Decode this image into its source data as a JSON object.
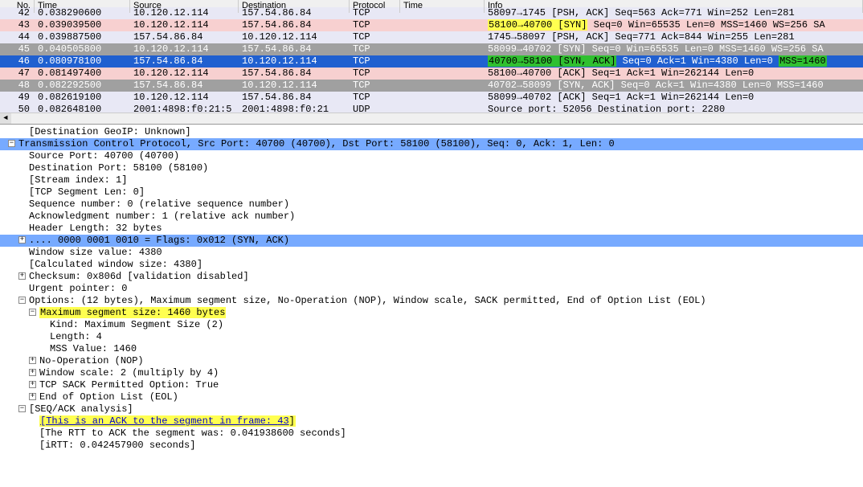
{
  "columns": {
    "no": "No.",
    "time": "Time",
    "src": "Source",
    "dst": "Destination",
    "prot": "Protocol",
    "time2": "Time",
    "info": "Info"
  },
  "packets": [
    {
      "no": "42",
      "time": "0.038290600",
      "src": "10.120.12.114",
      "dst": "157.54.86.84",
      "prot": "TCP",
      "info_pre": "58097→1745 [PSH, ACK] Seq=563 Ack=771 Win=252 Len=281",
      "bg": "bg-lav"
    },
    {
      "no": "43",
      "time": "0.039039500",
      "src": "10.120.12.114",
      "dst": "157.54.86.84",
      "prot": "TCP",
      "hl1": "58100→40700 [SYN]",
      "hl1c": "hl-y",
      "info_post": " Seq=0 Win=65535 Len=0 MSS=1460 WS=256 SA",
      "bg": "bg-pink"
    },
    {
      "no": "44",
      "time": "0.039887500",
      "src": "157.54.86.84",
      "dst": "10.120.12.114",
      "prot": "TCP",
      "info_pre": "1745→58097 [PSH, ACK] Seq=771 Ack=844 Win=255 Len=281",
      "bg": "bg-lav"
    },
    {
      "no": "45",
      "time": "0.040505800",
      "src": "10.120.12.114",
      "dst": "157.54.86.84",
      "prot": "TCP",
      "info_pre": "58099→40702 [SYN] Seq=0 Win=65535 Len=0 MSS=1460 WS=256 SA",
      "bg": "bg-gray"
    },
    {
      "no": "46",
      "time": "0.080978100",
      "src": "157.54.86.84",
      "dst": "10.120.12.114",
      "prot": "TCP",
      "hl1": "40700→58100 [SYN, ACK]",
      "hl1c": "hl-g",
      "info_mid": " Seq=0 Ack=1 Win=4380 Len=0 ",
      "hl2": "MSS=1460",
      "hl2c": "hl-g",
      "bg": "bg-blue"
    },
    {
      "no": "47",
      "time": "0.081497400",
      "src": "10.120.12.114",
      "dst": "157.54.86.84",
      "prot": "TCP",
      "info_pre": "58100→40700 [ACK] Seq=1 Ack=1 Win=262144 Len=0",
      "bg": "bg-pink"
    },
    {
      "no": "48",
      "time": "0.082292500",
      "src": "157.54.86.84",
      "dst": "10.120.12.114",
      "prot": "TCP",
      "info_pre": "40702→58099 [SYN, ACK] Seq=0 Ack=1 Win=4380 Len=0 MSS=1460",
      "bg": "bg-gray"
    },
    {
      "no": "49",
      "time": "0.082619100",
      "src": "10.120.12.114",
      "dst": "157.54.86.84",
      "prot": "TCP",
      "info_pre": "58099→40702 [ACK] Seq=1 Ack=1 Win=262144 Len=0",
      "bg": "bg-lav"
    },
    {
      "no": "50",
      "time": "0.082648100",
      "src": "2001:4898:f0:21:5",
      "dst": "2001:4898:f0:21",
      "prot": "UDP",
      "info_pre": "Source port: 52056  Destination port: 2280",
      "bg": "bg-lav"
    }
  ],
  "detail": {
    "l0": "[Destination GeoIP: Unknown]",
    "l1": "Transmission Control Protocol, Src Port: 40700 (40700), Dst Port: 58100 (58100), Seq: 0, Ack: 1, Len: 0",
    "l2": "Source Port: 40700 (40700)",
    "l3": "Destination Port: 58100 (58100)",
    "l4": "[Stream index: 1]",
    "l5": "[TCP Segment Len: 0]",
    "l6": "Sequence number: 0    (relative sequence number)",
    "l7": "Acknowledgment number: 1    (relative ack number)",
    "l8": "Header Length: 32 bytes",
    "l9": ".... 0000 0001 0010 = Flags: 0x012 (SYN, ACK)",
    "l10": "Window size value: 4380",
    "l11": "[Calculated window size: 4380]",
    "l12": "Checksum: 0x806d [validation disabled]",
    "l13": "Urgent pointer: 0",
    "l14": "Options: (12 bytes), Maximum segment size, No-Operation (NOP), Window scale, SACK permitted, End of Option List (EOL)",
    "l15": "Maximum segment size: 1460 bytes",
    "l16": "Kind: Maximum Segment Size (2)",
    "l17": "Length: 4",
    "l18": "MSS Value: 1460",
    "l19": "No-Operation (NOP)",
    "l20": "Window scale: 2 (multiply by 4)",
    "l21": "TCP SACK Permitted Option: True",
    "l22": "End of Option List (EOL)",
    "l23": "[SEQ/ACK analysis]",
    "l24a": "[This is an ACK to the segment in frame: ",
    "l24b": "43",
    "l24c": "]",
    "l25": "[The RTT to ACK the segment was: 0.041938600 seconds]",
    "l26": "[iRTT: 0.042457900 seconds]"
  },
  "plus": "+",
  "minus": "−"
}
